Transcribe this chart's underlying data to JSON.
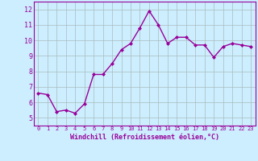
{
  "x": [
    0,
    1,
    2,
    3,
    4,
    5,
    6,
    7,
    8,
    9,
    10,
    11,
    12,
    13,
    14,
    15,
    16,
    17,
    18,
    19,
    20,
    21,
    22,
    23
  ],
  "y": [
    6.6,
    6.5,
    5.4,
    5.5,
    5.3,
    5.9,
    7.8,
    7.8,
    8.5,
    9.4,
    9.8,
    10.8,
    11.9,
    11.0,
    9.8,
    10.2,
    10.2,
    9.7,
    9.7,
    8.9,
    9.6,
    9.8,
    9.7,
    9.6
  ],
  "line_color": "#990099",
  "marker": "D",
  "marker_size": 2.0,
  "linewidth": 1.0,
  "bg_color": "#cceeff",
  "grid_color": "#aabbbb",
  "xlabel": "Windchill (Refroidissement éolien,°C)",
  "tick_color": "#990099",
  "xlim": [
    -0.5,
    23.5
  ],
  "ylim": [
    4.5,
    12.5
  ],
  "yticks": [
    5,
    6,
    7,
    8,
    9,
    10,
    11,
    12
  ],
  "xticks": [
    0,
    1,
    2,
    3,
    4,
    5,
    6,
    7,
    8,
    9,
    10,
    11,
    12,
    13,
    14,
    15,
    16,
    17,
    18,
    19,
    20,
    21,
    22,
    23
  ],
  "xtick_labels": [
    "0",
    "1",
    "2",
    "3",
    "4",
    "5",
    "6",
    "7",
    "8",
    "9",
    "10",
    "11",
    "12",
    "13",
    "14",
    "15",
    "16",
    "17",
    "18",
    "19",
    "20",
    "21",
    "22",
    "23"
  ],
  "ytick_labels": [
    "5",
    "6",
    "7",
    "8",
    "9",
    "10",
    "11",
    "12"
  ],
  "spine_color": "#990099",
  "xlabel_fontsize": 6.0,
  "tick_fontsize_x": 5.0,
  "tick_fontsize_y": 6.0
}
